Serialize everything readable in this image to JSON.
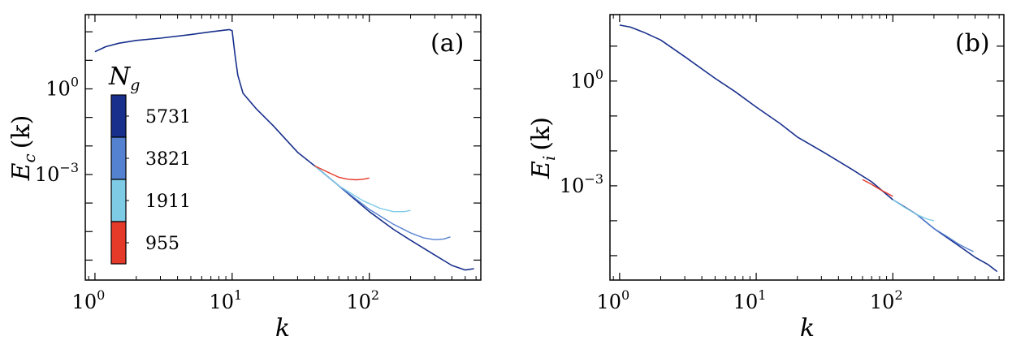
{
  "chart_data": [
    {
      "type": "line",
      "panel_label": "(a)",
      "title": "",
      "xlabel": "k",
      "ylabel": {
        "base": "E",
        "sub": "c",
        "arg": "(k)"
      },
      "xscale": "log",
      "yscale": "log",
      "xlim": [
        0.85,
        650
      ],
      "ylim": [
        2e-07,
        400
      ],
      "x_ticks": [
        {
          "base": "10",
          "exp": "0",
          "value": 1
        },
        {
          "base": "10",
          "exp": "1",
          "value": 10
        },
        {
          "base": "10",
          "exp": "2",
          "value": 100
        }
      ],
      "y_ticks": [
        {
          "base": "10",
          "exp": "0",
          "value": 1
        },
        {
          "base": "10",
          "exp": "−3",
          "value": 0.001
        }
      ],
      "colorbar": {
        "title": {
          "base": "N",
          "sub": "g"
        },
        "levels": [
          {
            "label": "5731",
            "color": "#182f8c"
          },
          {
            "label": "3821",
            "color": "#5481d0"
          },
          {
            "label": "1911",
            "color": "#7ecbe6"
          },
          {
            "label": "955",
            "color": "#e53a2a"
          }
        ]
      },
      "series": [
        {
          "name": "5731",
          "color": "#182f8c",
          "x": [
            1,
            1.2,
            1.5,
            2,
            3,
            5,
            7,
            9.5,
            10,
            10.5,
            11,
            12,
            15,
            20,
            30,
            40,
            60,
            100,
            150,
            200,
            300,
            400,
            500,
            580
          ],
          "y": [
            20,
            30,
            40,
            50,
            60,
            80,
            100,
            120,
            110,
            15,
            3,
            0.7,
            0.2,
            0.05,
            0.006,
            0.002,
            0.0004,
            5e-05,
            1.2e-05,
            5e-06,
            1.5e-06,
            6.5e-07,
            4.5e-07,
            5e-07
          ]
        },
        {
          "name": "3821",
          "color": "#5481d0",
          "x": [
            40,
            60,
            100,
            150,
            200,
            250,
            300,
            350,
            390
          ],
          "y": [
            0.002,
            0.0004,
            6e-05,
            1.8e-05,
            9e-06,
            6e-06,
            5.2e-06,
            5.5e-06,
            6.5e-06
          ]
        },
        {
          "name": "1911",
          "color": "#7ecbe6",
          "x": [
            40,
            60,
            90,
            120,
            150,
            180,
            200
          ],
          "y": [
            0.002,
            0.0004,
            0.00012,
            6.5e-05,
            5e-05,
            5e-05,
            5.5e-05
          ]
        },
        {
          "name": "955",
          "color": "#e53a2a",
          "x": [
            40,
            50,
            60,
            70,
            80,
            90,
            100
          ],
          "y": [
            0.002,
            0.0012,
            0.0008,
            0.00068,
            0.00065,
            0.00068,
            0.00075
          ]
        }
      ]
    },
    {
      "type": "line",
      "panel_label": "(b)",
      "title": "",
      "xlabel": "k",
      "ylabel": {
        "base": "E",
        "sub": "i",
        "arg": "(k)"
      },
      "xscale": "log",
      "yscale": "log",
      "xlim": [
        0.85,
        650
      ],
      "ylim": [
        2e-06,
        80
      ],
      "x_ticks": [
        {
          "base": "10",
          "exp": "0",
          "value": 1
        },
        {
          "base": "10",
          "exp": "1",
          "value": 10
        },
        {
          "base": "10",
          "exp": "2",
          "value": 100
        }
      ],
      "y_ticks": [
        {
          "base": "10",
          "exp": "0",
          "value": 1
        },
        {
          "base": "10",
          "exp": "−3",
          "value": 0.001
        }
      ],
      "series": [
        {
          "name": "5731",
          "color": "#182f8c",
          "x": [
            1,
            1.2,
            1.5,
            2,
            3,
            5,
            7,
            10,
            15,
            20,
            30,
            50,
            70,
            100,
            150,
            200,
            300,
            400,
            500,
            580
          ],
          "y": [
            40,
            35,
            25,
            15,
            5,
            1.2,
            0.5,
            0.18,
            0.06,
            0.025,
            0.01,
            0.003,
            0.0013,
            0.0004,
            0.00015,
            6e-05,
            2e-05,
            9e-06,
            5.5e-06,
            3.5e-06
          ]
        },
        {
          "name": "3821",
          "color": "#5481d0",
          "x": [
            150,
            200,
            250,
            300,
            350,
            390
          ],
          "y": [
            0.00015,
            6e-05,
            3.5e-05,
            2.2e-05,
            1.6e-05,
            1.3e-05
          ]
        },
        {
          "name": "1911",
          "color": "#7ecbe6",
          "x": [
            100,
            120,
            150,
            180,
            200
          ],
          "y": [
            0.0004,
            0.00025,
            0.00015,
            0.00011,
            0.0001
          ]
        },
        {
          "name": "955",
          "color": "#e53a2a",
          "x": [
            60,
            70,
            80,
            90,
            100
          ],
          "y": [
            0.0015,
            0.0011,
            0.0008,
            0.00062,
            0.0005
          ]
        }
      ]
    }
  ]
}
